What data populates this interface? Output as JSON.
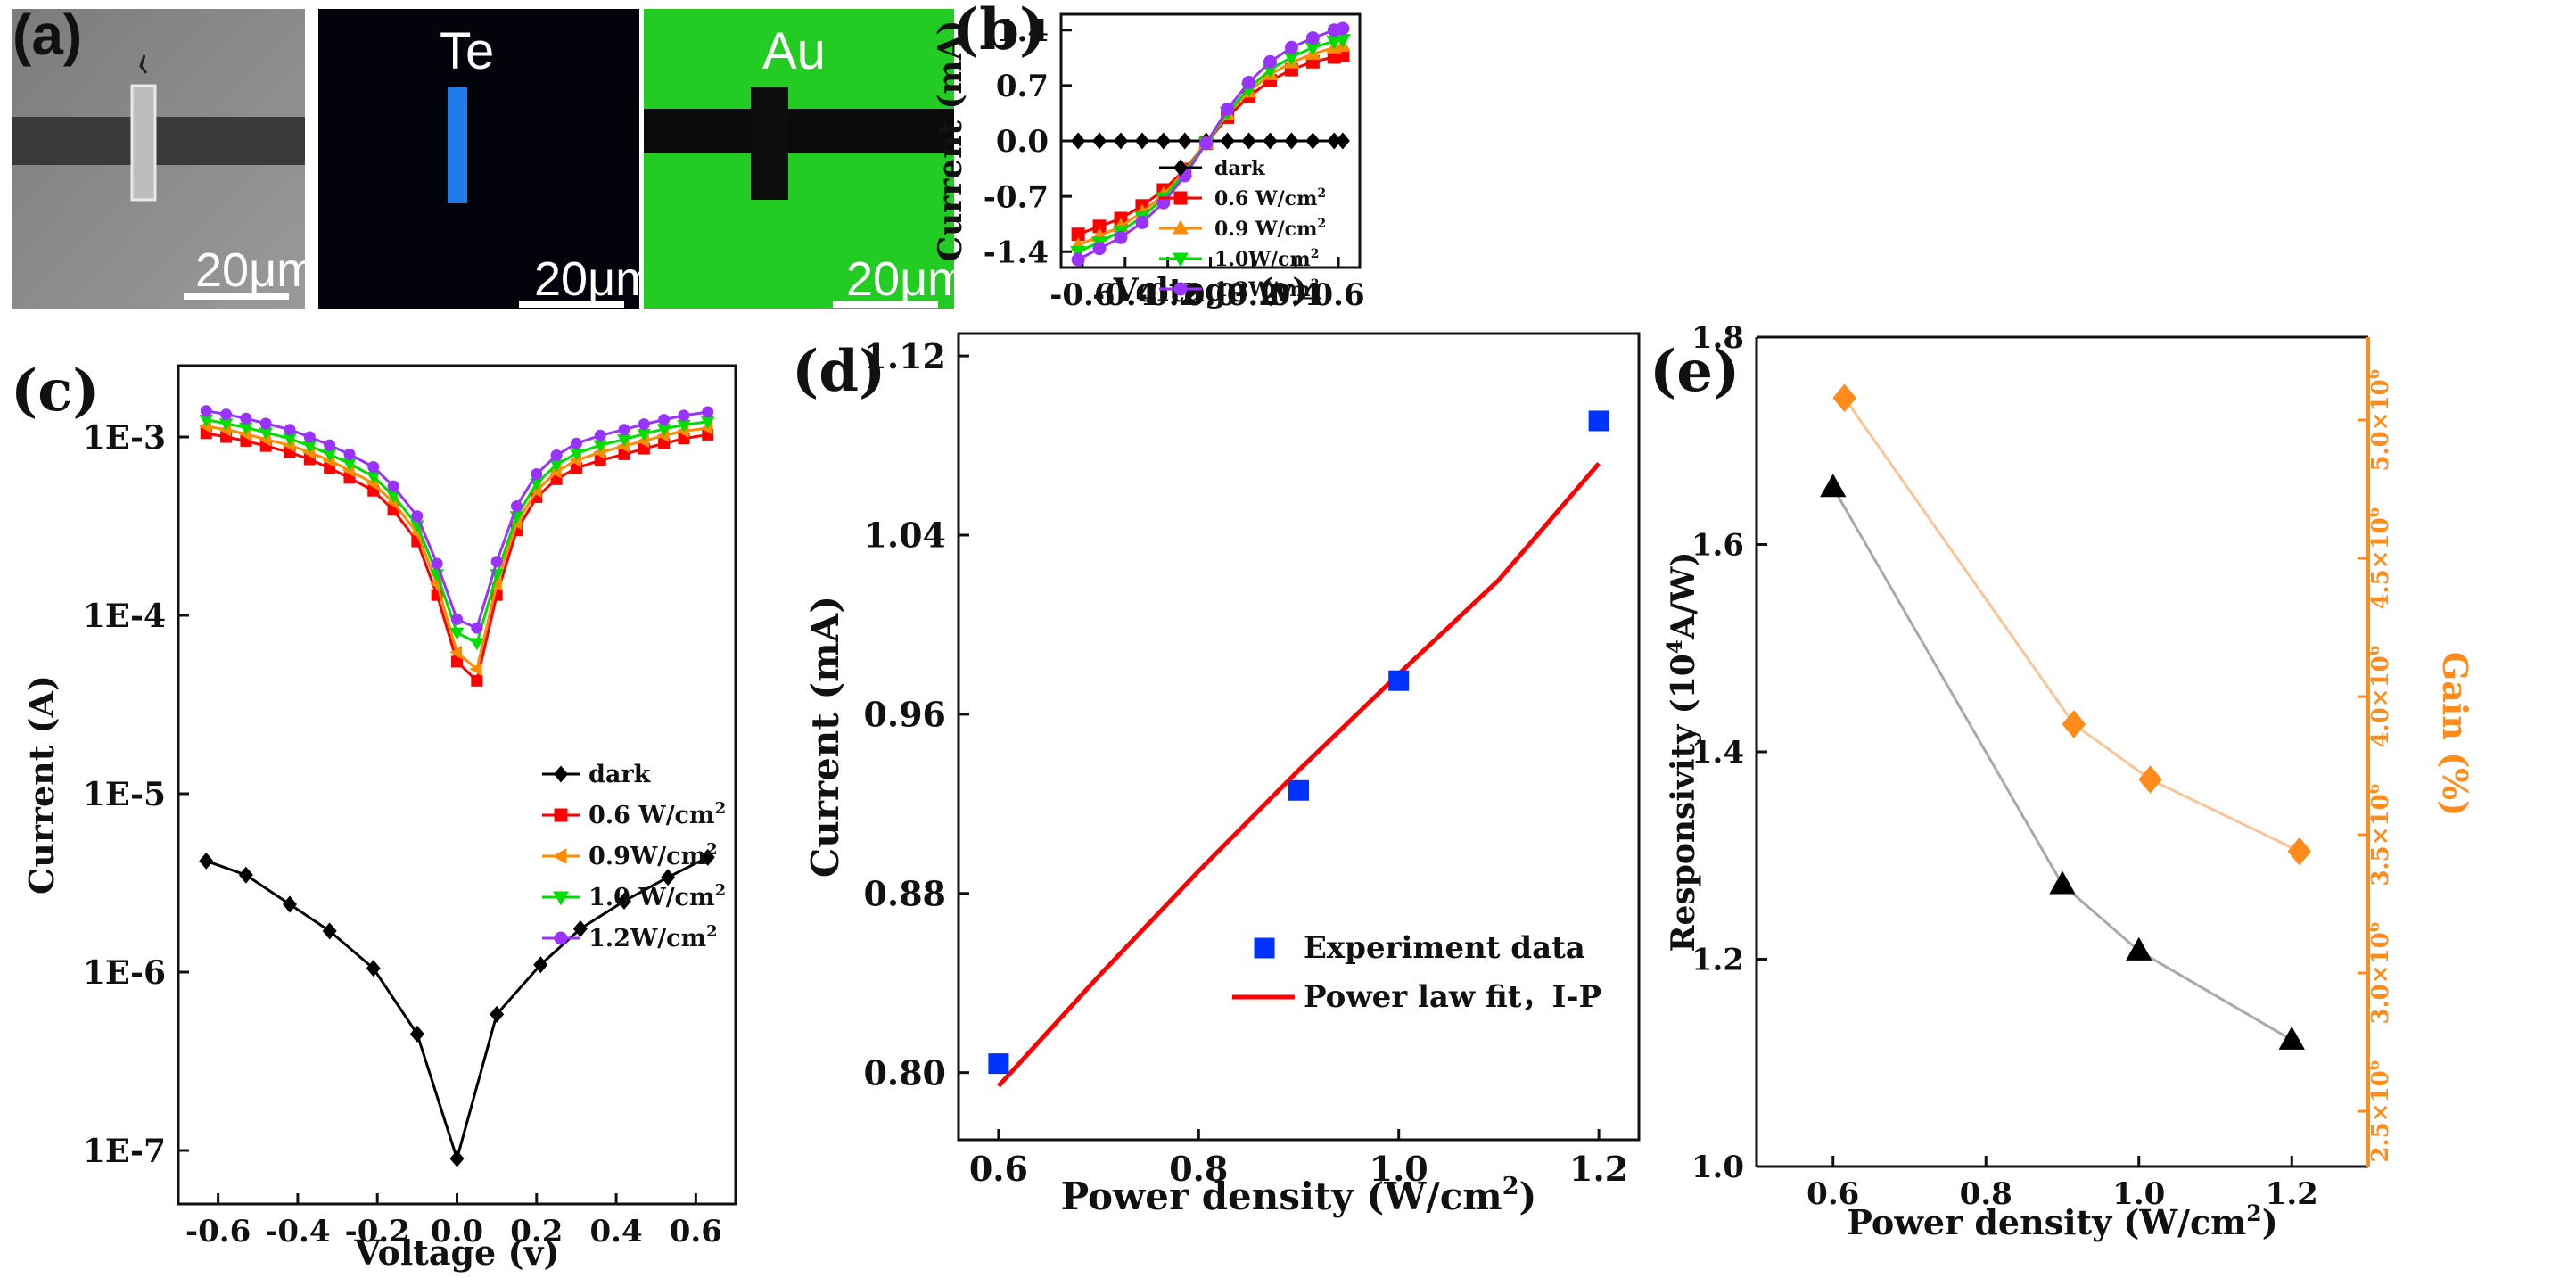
{
  "panels": {
    "a": {
      "label": "(a)",
      "images": [
        {
          "element": "",
          "scale_bar": "20μm"
        },
        {
          "element": "Te",
          "scale_bar": "20μm"
        },
        {
          "element": "Au",
          "scale_bar": "20μm"
        }
      ]
    }
  },
  "colors": {
    "dark": "#000000",
    "p06": "#ff0000",
    "p09": "#ff8c00",
    "p10": "#00dd00",
    "p12": "#9933ff",
    "blue_marker": "#0033ff",
    "fit_line": "#ff0000",
    "resp_line": "#a9a9a9",
    "gain": "#ff8c1a",
    "te_map": "#2288ff",
    "au_map": "#22cc22"
  },
  "chart_data": [
    {
      "id": "b",
      "panel_label": "(b)",
      "type": "line",
      "xlabel": "Voltage (v)",
      "ylabel": "Current (mA)",
      "xlim": [
        -0.7,
        0.7
      ],
      "ylim": [
        -1.6,
        1.6
      ],
      "xticks": [
        "-0.6",
        "-0.4",
        "-0.2",
        "0.0",
        "0.2",
        "0.4",
        "0.6"
      ],
      "yticks": [
        "-1.4",
        "-0.7",
        "0.0",
        "0.7",
        "1.4"
      ],
      "legend_position": "bottom-right",
      "x": [
        -0.62,
        -0.52,
        -0.42,
        -0.32,
        -0.22,
        -0.12,
        -0.02,
        0.08,
        0.18,
        0.28,
        0.38,
        0.48,
        0.58,
        0.62
      ],
      "series": [
        {
          "name": "dark",
          "sup": "",
          "unit": "",
          "marker": "diamond",
          "colorKey": "dark",
          "values": [
            0,
            0,
            0,
            0,
            0,
            0,
            0,
            0,
            0,
            0,
            0,
            0,
            0,
            0
          ]
        },
        {
          "name": "0.6 W/cm",
          "sup": "2",
          "unit": "",
          "marker": "square",
          "colorKey": "p06",
          "values": [
            -1.18,
            -1.08,
            -0.98,
            -0.82,
            -0.62,
            -0.36,
            -0.03,
            0.3,
            0.56,
            0.76,
            0.9,
            1.0,
            1.06,
            1.08
          ]
        },
        {
          "name": "0.9 W/cm",
          "sup": "2",
          "unit": "",
          "marker": "triangle-up",
          "colorKey": "p09",
          "values": [
            -1.32,
            -1.2,
            -1.08,
            -0.9,
            -0.68,
            -0.38,
            -0.03,
            0.34,
            0.62,
            0.84,
            0.99,
            1.1,
            1.18,
            1.2
          ]
        },
        {
          "name": "1.0W/cm",
          "sup": "2",
          "unit": "",
          "marker": "triangle-down",
          "colorKey": "p10",
          "values": [
            -1.4,
            -1.28,
            -1.14,
            -0.96,
            -0.72,
            -0.4,
            -0.03,
            0.36,
            0.66,
            0.9,
            1.06,
            1.18,
            1.26,
            1.28
          ]
        },
        {
          "name": "1.2W/cm",
          "sup": "2",
          "unit": "",
          "marker": "circle",
          "colorKey": "p12",
          "values": [
            -1.5,
            -1.36,
            -1.22,
            -1.03,
            -0.78,
            -0.44,
            -0.03,
            0.4,
            0.74,
            1.0,
            1.18,
            1.3,
            1.4,
            1.42
          ]
        }
      ]
    },
    {
      "id": "c",
      "panel_label": "(c)",
      "type": "line",
      "yscale": "log",
      "xlabel": "Voltage (v)",
      "ylabel": "Current (A)",
      "xlim": [
        -0.7,
        0.7
      ],
      "ylim_exp": [
        -7.3,
        -2.6
      ],
      "xticks": [
        "-0.6",
        "-0.4",
        "-0.2",
        "0.0",
        "0.2",
        "0.4",
        "0.6"
      ],
      "yticks": [
        "1E-7",
        "1E-6",
        "1E-5",
        "1E-4",
        "1E-3"
      ],
      "legend_position": "center-right",
      "x_dark": [
        -0.63,
        -0.53,
        -0.42,
        -0.32,
        -0.21,
        -0.1,
        0.0,
        0.1,
        0.21,
        0.31,
        0.42,
        0.53,
        0.63
      ],
      "x_light": [
        -0.63,
        -0.58,
        -0.53,
        -0.48,
        -0.42,
        -0.37,
        -0.32,
        -0.27,
        -0.21,
        -0.16,
        -0.1,
        -0.05,
        0.0,
        0.05,
        0.1,
        0.15,
        0.2,
        0.25,
        0.3,
        0.36,
        0.42,
        0.47,
        0.52,
        0.57,
        0.63
      ],
      "series": [
        {
          "name": "dark",
          "sup": "",
          "unit": "",
          "marker": "diamond",
          "colorKey": "dark",
          "xKey": "x_dark",
          "values": [
            4.2e-06,
            3.5e-06,
            2.4e-06,
            1.7e-06,
            1.05e-06,
            4.5e-07,
            9e-08,
            5.8e-07,
            1.1e-06,
            1.75e-06,
            2.5e-06,
            3.4e-06,
            4.4e-06
          ]
        },
        {
          "name": "0.6 W/cm",
          "sup": "2",
          "unit": "",
          "marker": "square",
          "colorKey": "p06",
          "xKey": "x_light",
          "values": [
            0.00105,
            0.001,
            0.00095,
            0.00089,
            0.00082,
            0.00075,
            0.00067,
            0.00059,
            0.0005,
            0.00039,
            0.00026,
            0.00013,
            5.5e-05,
            4.3e-05,
            0.00013,
            0.0003,
            0.00046,
            0.00058,
            0.00067,
            0.00074,
            0.0008,
            0.00086,
            0.00092,
            0.00098,
            0.00103
          ]
        },
        {
          "name": "0.9W/cm",
          "sup": "2",
          "unit": "",
          "marker": "triangle-left",
          "colorKey": "p09",
          "xKey": "x_light",
          "values": [
            0.00115,
            0.0011,
            0.00104,
            0.00097,
            0.0009,
            0.00082,
            0.00074,
            0.00065,
            0.00055,
            0.00043,
            0.00029,
            0.00015,
            6.2e-05,
            5e-05,
            0.00015,
            0.00033,
            0.0005,
            0.00064,
            0.00074,
            0.00082,
            0.00089,
            0.00095,
            0.00102,
            0.00108,
            0.00112
          ]
        },
        {
          "name": "1.0 W/cm",
          "sup": "2",
          "unit": "",
          "marker": "triangle-down",
          "colorKey": "p10",
          "xKey": "x_light",
          "values": [
            0.00125,
            0.00119,
            0.00113,
            0.00106,
            0.00098,
            0.00089,
            0.0008,
            0.00071,
            0.0006,
            0.00047,
            0.00032,
            0.00017,
            8e-05,
            7e-05,
            0.00017,
            0.00036,
            0.00055,
            0.0007,
            0.00081,
            0.0009,
            0.00097,
            0.00104,
            0.00111,
            0.00117,
            0.00122
          ]
        },
        {
          "name": "1.2W/cm",
          "sup": "2",
          "unit": "",
          "marker": "circle",
          "colorKey": "p12",
          "xKey": "x_light",
          "values": [
            0.0014,
            0.00134,
            0.00127,
            0.00119,
            0.0011,
            0.001,
            0.0009,
            0.0008,
            0.00068,
            0.00053,
            0.00036,
            0.000195,
            9.5e-05,
            8.5e-05,
            0.0002,
            0.00041,
            0.00062,
            0.00079,
            0.00092,
            0.00102,
            0.0011,
            0.00118,
            0.00125,
            0.00132,
            0.00138
          ]
        }
      ]
    },
    {
      "id": "d",
      "panel_label": "(d)",
      "type": "scatter",
      "xlabel": "Power density (W/cm",
      "xlabel_sup": "2",
      "xlabel_end": ")",
      "ylabel": "Current (mA)",
      "xlim": [
        0.56,
        1.24
      ],
      "ylim": [
        0.77,
        1.13
      ],
      "xticks": [
        "0.6",
        "0.8",
        "1.0",
        "1.2"
      ],
      "yticks": [
        "0.80",
        "0.88",
        "0.96",
        "1.04",
        "1.12"
      ],
      "legend_position": "bottom-right",
      "scatter": {
        "name": "Experiment data",
        "x": [
          0.6,
          0.9,
          1.0,
          1.2
        ],
        "y": [
          0.804,
          0.926,
          0.975,
          1.091
        ]
      },
      "fit": {
        "name": "Power  law fit，I-P",
        "x": [
          0.6,
          0.7,
          0.8,
          0.9,
          1.0,
          1.1,
          1.2
        ],
        "y": [
          0.794,
          0.843,
          0.89,
          0.935,
          0.978,
          1.02,
          1.072
        ]
      }
    },
    {
      "id": "e",
      "panel_label": "(e)",
      "type": "line",
      "xlabel": "Power density (W/cm",
      "xlabel_sup": "2",
      "xlabel_end": ")",
      "ylabel_left": "Responsivity (10",
      "ylabel_left_sup": "4",
      "ylabel_left_end": "A/W)",
      "ylabel_right": "Gain (%)",
      "xlim": [
        0.5,
        1.3
      ],
      "ylim_left": [
        1.0,
        1.8
      ],
      "ylim_right": [
        2.3,
        5.3
      ],
      "xticks": [
        "0.6",
        "0.8",
        "1.0",
        "1.2"
      ],
      "yticks_left": [
        "1.0",
        "1.2",
        "1.4",
        "1.6",
        "1.8"
      ],
      "yticks_right": [
        "2.5×10",
        "3.0×10",
        "3.5×10",
        "4.0×10",
        "4.5×10",
        "5.0×10"
      ],
      "yticks_right_sup": "6",
      "responsivity": {
        "x": [
          0.6,
          0.9,
          1.0,
          1.2
        ],
        "y": [
          1.655,
          1.272,
          1.208,
          1.122
        ]
      },
      "gain": {
        "x": [
          0.615,
          0.915,
          1.015,
          1.21
        ],
        "y": [
          5.08,
          3.9,
          3.7,
          3.44
        ]
      }
    }
  ]
}
